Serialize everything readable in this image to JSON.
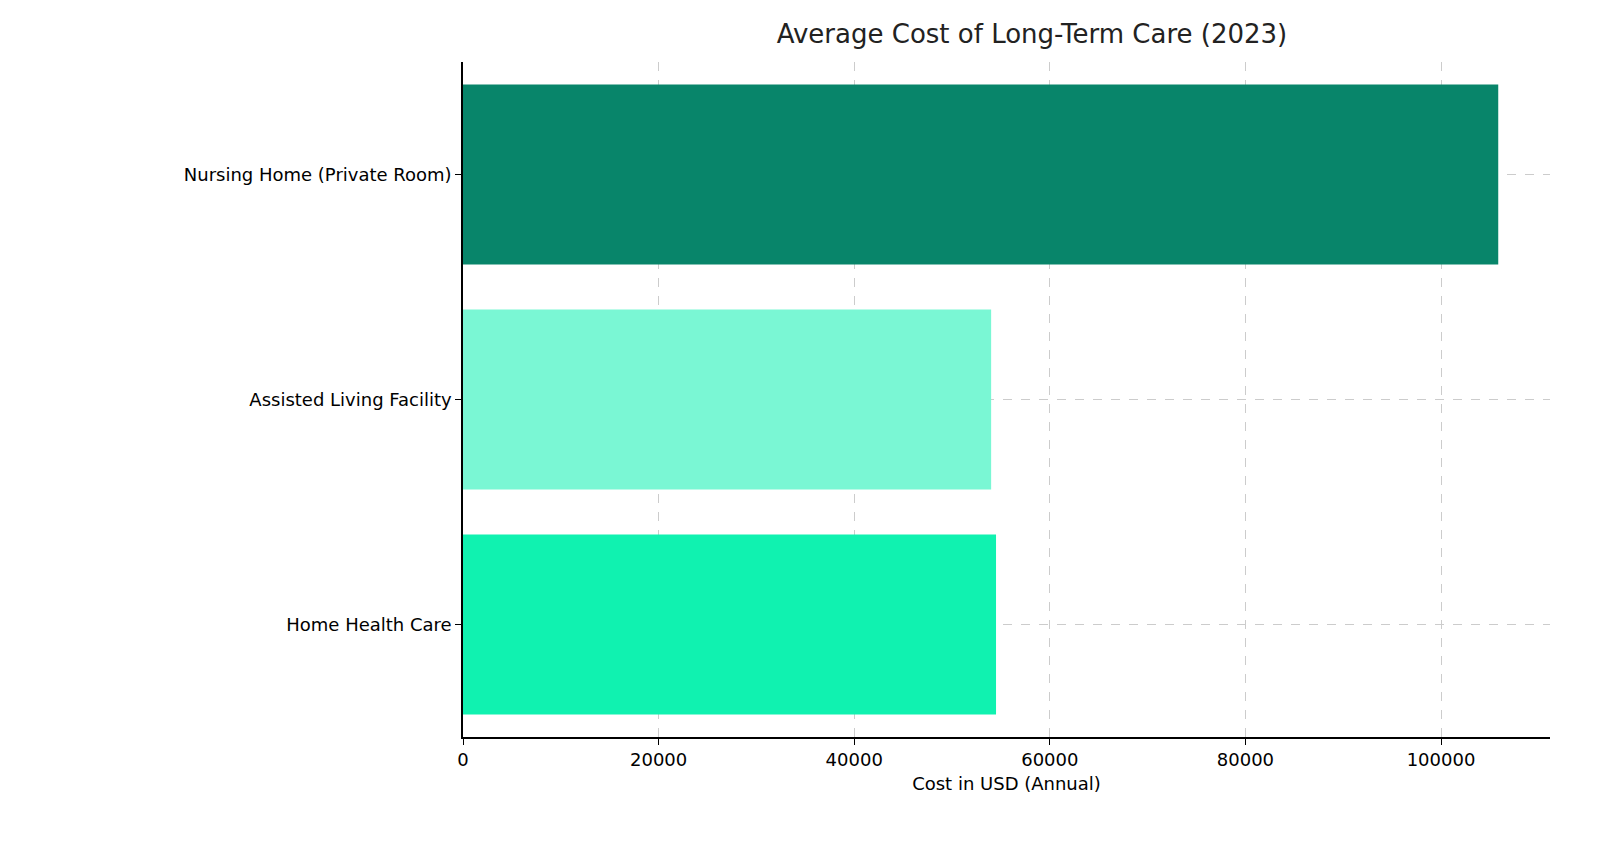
{
  "chart_data": {
    "type": "bar",
    "orientation": "horizontal",
    "title": "Average Cost of Long-Term Care (2023)",
    "x_label": "Cost in USD (Annual)",
    "categories": [
      "Nursing Home (Private Room)",
      "Assisted Living Facility",
      "Home Health Care"
    ],
    "values": [
      105850,
      54000,
      54500
    ],
    "colors": [
      "#08856a",
      "#7af7d4",
      "#10f2b0"
    ],
    "xlim": [
      0,
      111142
    ],
    "xticks": [
      0,
      20000,
      40000,
      60000,
      80000,
      100000
    ],
    "grid": true
  }
}
